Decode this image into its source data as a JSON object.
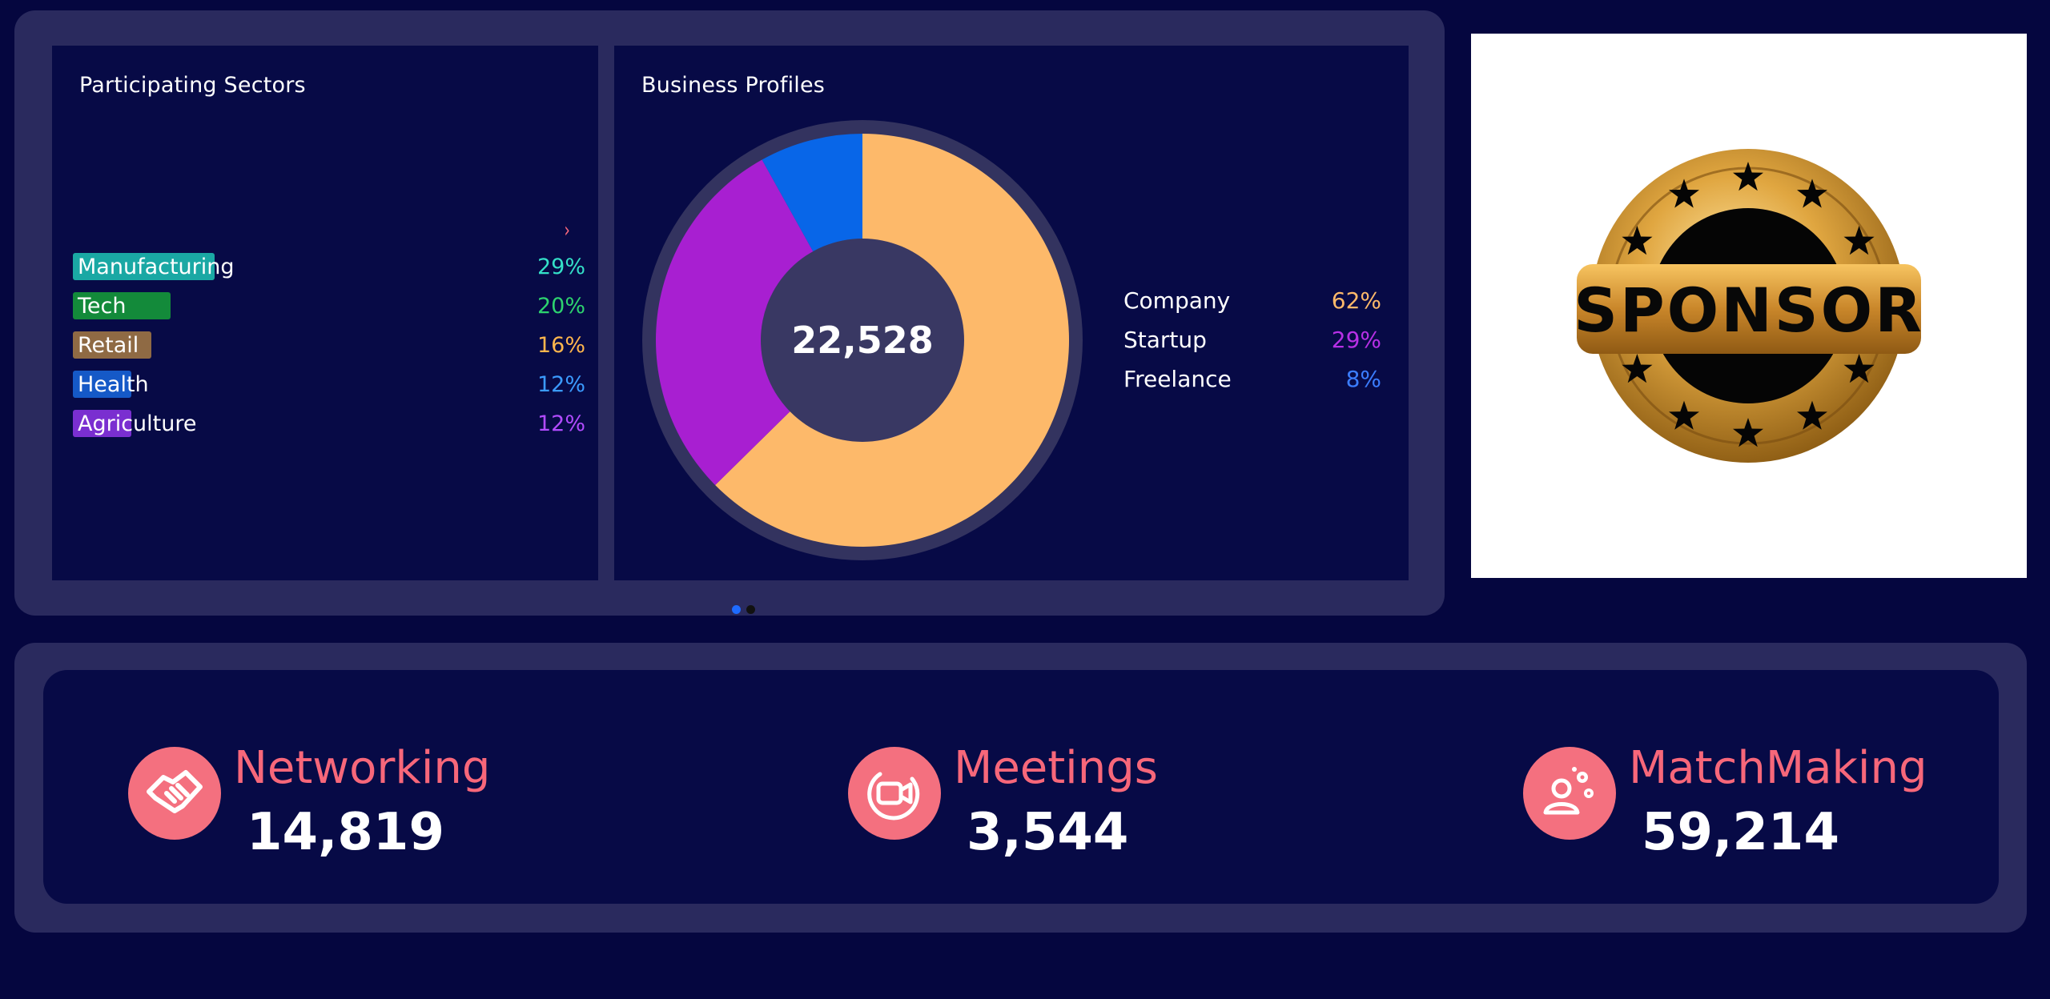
{
  "colors": {
    "background": "#05063f",
    "frame": "#2a2a5e",
    "card": "#070a46",
    "accent": "#f4707f"
  },
  "sectors": {
    "title": "Participating Sectors",
    "chevron_icon": "chevron-right-icon",
    "items": [
      {
        "label": "Manufacturing",
        "pct": "29%",
        "value": 29,
        "bar_color": "#1aa8a4",
        "pct_color": "#34e0c8"
      },
      {
        "label": "Tech",
        "pct": "20%",
        "value": 20,
        "bar_color": "#138a3a",
        "pct_color": "#2dd36f"
      },
      {
        "label": "Retail",
        "pct": "16%",
        "value": 16,
        "bar_color": "#8f6a44",
        "pct_color": "#ffb64d"
      },
      {
        "label": "Health",
        "pct": "12%",
        "value": 12,
        "bar_color": "#1559c7",
        "pct_color": "#3b9bff"
      },
      {
        "label": "Agriculture",
        "pct": "12%",
        "value": 12,
        "bar_color": "#7a2fd0",
        "pct_color": "#b14bff"
      }
    ]
  },
  "profiles": {
    "title": "Business Profiles",
    "total": "22,528",
    "chart_data": {
      "type": "pie",
      "title": "Business Profiles",
      "categories": [
        "Company",
        "Startup",
        "Freelance"
      ],
      "values": [
        62,
        29,
        8
      ],
      "colors": [
        "#fdb96a",
        "#a81fd1",
        "#0866e8"
      ],
      "center_label": "22,528"
    },
    "legend": [
      {
        "label": "Company",
        "pct": "62%",
        "color": "#fdb96a"
      },
      {
        "label": "Startup",
        "pct": "29%",
        "color": "#b730e6"
      },
      {
        "label": "Freelance",
        "pct": "8%",
        "color": "#3b7dff"
      }
    ]
  },
  "carousel": {
    "dots": [
      {
        "active": true,
        "color": "#1e6bff"
      },
      {
        "active": false,
        "color": "#111111"
      }
    ]
  },
  "sponsor": {
    "text": "SPONSOR",
    "icon": "sponsor-badge-icon"
  },
  "stats": [
    {
      "label": "Networking",
      "value": "14,819",
      "icon": "handshake-icon"
    },
    {
      "label": "Meetings",
      "value": "3,544",
      "icon": "video-call-icon"
    },
    {
      "label": "MatchMaking",
      "value": "59,214",
      "icon": "matchmaking-user-gears-icon"
    }
  ]
}
